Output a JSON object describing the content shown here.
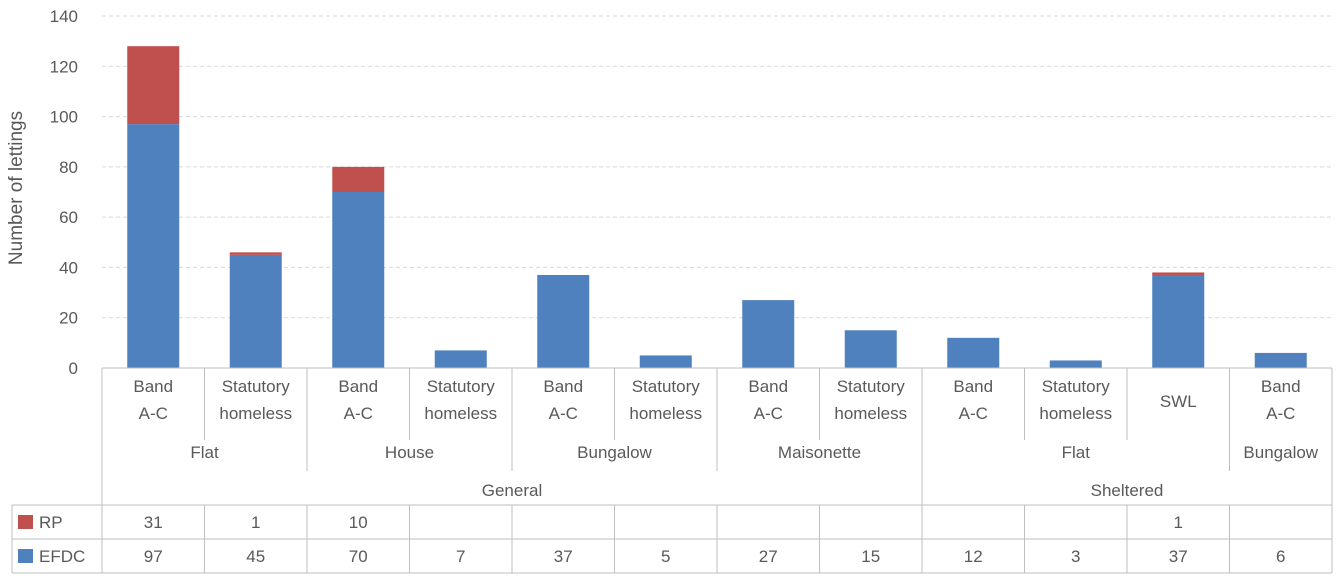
{
  "chart_data": {
    "type": "bar",
    "stacked": true,
    "ylabel": "Number of lettings",
    "ylim": [
      0,
      140
    ],
    "yticks": [
      0,
      20,
      40,
      60,
      80,
      100,
      120,
      140
    ],
    "grid": true,
    "categories": [
      {
        "band": [
          "Band",
          "A-C"
        ],
        "type": "Flat",
        "group": "General"
      },
      {
        "band": [
          "Statutory",
          "homeless"
        ],
        "type": "Flat",
        "group": "General"
      },
      {
        "band": [
          "Band",
          "A-C"
        ],
        "type": "House",
        "group": "General"
      },
      {
        "band": [
          "Statutory",
          "homeless"
        ],
        "type": "House",
        "group": "General"
      },
      {
        "band": [
          "Band",
          "A-C"
        ],
        "type": "Bungalow",
        "group": "General"
      },
      {
        "band": [
          "Statutory",
          "homeless"
        ],
        "type": "Bungalow",
        "group": "General"
      },
      {
        "band": [
          "Band",
          "A-C"
        ],
        "type": "Maisonette",
        "group": "General"
      },
      {
        "band": [
          "Statutory",
          "homeless"
        ],
        "type": "Maisonette",
        "group": "General"
      },
      {
        "band": [
          "Band",
          "A-C"
        ],
        "type": "Flat",
        "group": "Sheltered"
      },
      {
        "band": [
          "Statutory",
          "homeless"
        ],
        "type": "Flat",
        "group": "Sheltered"
      },
      {
        "band": [
          "SWL"
        ],
        "type": "Flat",
        "group": "Sheltered"
      },
      {
        "band": [
          "Band",
          "A-C"
        ],
        "type": "Bungalow",
        "group": "Sheltered"
      }
    ],
    "type_groups": [
      {
        "label": "Flat",
        "start": 0,
        "end": 1
      },
      {
        "label": "House",
        "start": 2,
        "end": 3
      },
      {
        "label": "Bungalow",
        "start": 4,
        "end": 5
      },
      {
        "label": "Maisonette",
        "start": 6,
        "end": 7
      },
      {
        "label": "Flat",
        "start": 8,
        "end": 10
      },
      {
        "label": "Bungalow",
        "start": 11,
        "end": 11
      }
    ],
    "top_groups": [
      {
        "label": "General",
        "start": 0,
        "end": 7
      },
      {
        "label": "Sheltered",
        "start": 8,
        "end": 11
      }
    ],
    "series": [
      {
        "name": "EFDC",
        "color": "#4e81bd",
        "values": [
          97,
          45,
          70,
          7,
          37,
          5,
          27,
          15,
          12,
          3,
          37,
          6
        ]
      },
      {
        "name": "RP",
        "color": "#c0504d",
        "values": [
          31,
          1,
          10,
          null,
          null,
          null,
          null,
          null,
          null,
          null,
          1,
          null
        ]
      }
    ],
    "table_order": [
      "RP",
      "EFDC"
    ]
  }
}
